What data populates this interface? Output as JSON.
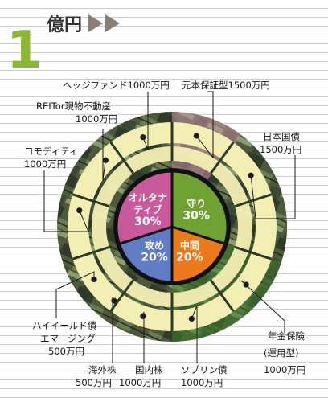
{
  "header": {
    "number": "1",
    "title": "億円"
  },
  "colors": {
    "accent": "#8cb833",
    "ring": "#f3efb4",
    "core_green": "#6fa232",
    "core_pink": "#c85a9c",
    "core_blue": "#5f7cc4",
    "core_orange": "#ec7a1c",
    "marker": "#1a1a1a"
  },
  "chart_data": {
    "type": "pie",
    "inner": [
      {
        "name": "守り",
        "value": "30%",
        "percent": 30,
        "color": "#6fa232"
      },
      {
        "name": "中間",
        "value": "20%",
        "percent": 20,
        "color": "#ec7a1c"
      },
      {
        "name": "攻め",
        "value": "20%",
        "percent": 20,
        "color": "#5f7cc4"
      },
      {
        "name": "オルタナ ティブ",
        "value": "30%",
        "percent": 30,
        "color": "#c85a9c"
      }
    ],
    "outer": [
      {
        "name": "元本保証型",
        "amount": "1500万円"
      },
      {
        "name": "日本国債",
        "amount": "1500万円"
      },
      {
        "name": "年金保険 (運用型)",
        "amount": "1000万円"
      },
      {
        "name": "ソブリン債",
        "amount": "1000万円"
      },
      {
        "name": "国内株",
        "amount": "1000万円"
      },
      {
        "name": "海外株",
        "amount": "500万円"
      },
      {
        "name": "ハイイールド債 エマージング",
        "amount": "500万円"
      },
      {
        "name": "コモディティ",
        "amount": "1000万円"
      },
      {
        "name": "REITor現物不動産",
        "amount": "1000万円"
      },
      {
        "name": "ヘッジファンド",
        "amount": "1000万円"
      }
    ],
    "labels": {
      "genpon": [
        "元本保証型1500万円"
      ],
      "nihon": [
        "日本国債",
        "1500万円"
      ],
      "nenkin": [
        "年金保険",
        "(運用型)",
        "1000万円"
      ],
      "soburin": [
        "ソブリン債",
        "1000万円"
      ],
      "kokunai": [
        "国内株",
        "1000万円"
      ],
      "kaigai": [
        "海外株",
        "500万円"
      ],
      "highyield": [
        "ハイイールド債",
        "エマージング",
        "500万円"
      ],
      "commodity": [
        "コモディティ",
        "1000万円"
      ],
      "reit": [
        "REITor現物不動産",
        "1000万円"
      ],
      "hedge": [
        "ヘッジファンド1000万円"
      ]
    }
  }
}
